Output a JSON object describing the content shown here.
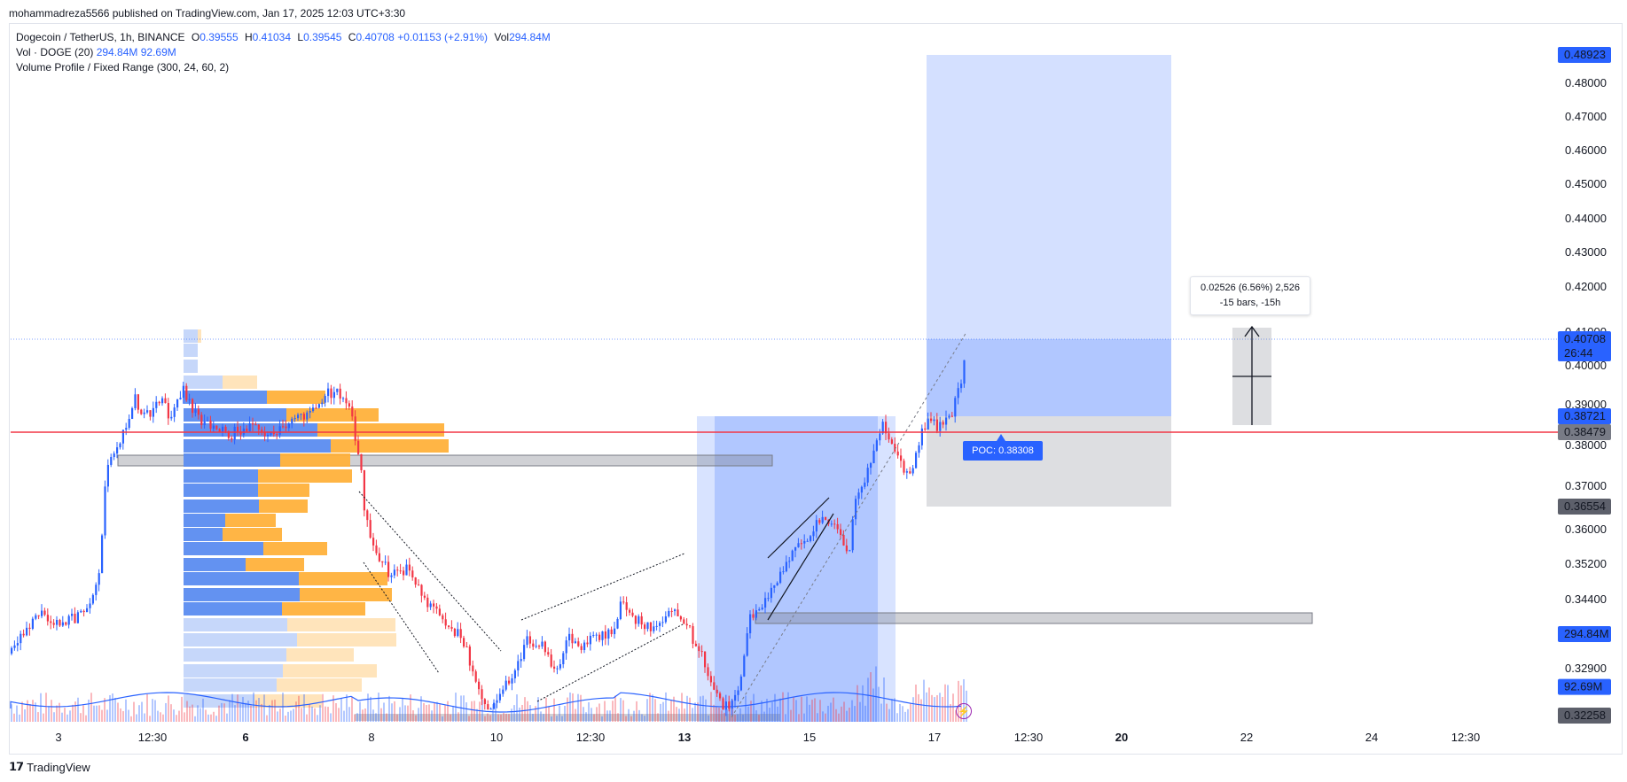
{
  "header": {
    "publisher": "mohammadreza5566 published on TradingView.com, Jan 17, 2025 12:03 UTC+3:30"
  },
  "legend": {
    "symbol": "Dogecoin / TetherUS, 1h, BINANCE",
    "o_label": "O",
    "o_value": "0.39555",
    "h_label": "H",
    "h_value": "0.41034",
    "l_label": "L",
    "l_value": "0.39545",
    "c_label": "C",
    "c_value": "0.40708",
    "change": "+0.01153 (+2.91%)",
    "vol_label": "Vol",
    "vol_value": "294.84M",
    "vol_indicator": "Vol · DOGE (20)",
    "vol_ind_value1": "294.84M",
    "vol_ind_value2": "92.69M",
    "volume_profile": "Volume Profile / Fixed Range (300, 24, 60, 2)"
  },
  "measure": {
    "line1": "0.02526 (6.56%) 2,526",
    "line2": "-15 bars, -15h"
  },
  "poc": {
    "label": "POC: 0.38308"
  },
  "footer": {
    "brand": "TradingView"
  },
  "colors": {
    "up": "#2962ff",
    "down": "#f23645",
    "profile_up": "#5b8cf0",
    "profile_down": "#ffb13b",
    "accent": "#2962ff",
    "red_line": "#f23645"
  },
  "chart_data": {
    "type": "candlestick",
    "symbol": "DOGE/USDT",
    "interval": "1h",
    "price_axis": {
      "ticks": [
        0.48,
        0.47,
        0.46,
        0.45,
        0.44,
        0.43,
        0.42,
        0.41,
        0.4,
        0.39,
        0.38,
        0.37,
        0.36,
        0.352,
        0.344,
        0.329
      ],
      "tick_labels": [
        "0.48000",
        "0.47000",
        "0.46000",
        "0.45000",
        "0.44000",
        "0.43000",
        "0.42000",
        "0.41000",
        "0.40000",
        "0.39000",
        "0.38000",
        "0.37000",
        "0.36000",
        "0.35200",
        "0.34400",
        "0.32900"
      ],
      "badges": [
        {
          "label": "0.48923",
          "color": "#2962ff",
          "price": 0.48923
        },
        {
          "label": "0.40708",
          "sub": "26:44",
          "color": "#2962ff",
          "price": 0.40708
        },
        {
          "label": "0.38721",
          "color": "#2962ff",
          "price": 0.38721
        },
        {
          "label": "0.38479",
          "color": "#787b86",
          "price": 0.38479
        },
        {
          "label": "0.36554",
          "color": "#5d606b",
          "price": 0.36554
        },
        {
          "label": "294.84M",
          "color": "#2962ff",
          "price": 0.3365
        },
        {
          "label": "92.69M",
          "color": "#2962ff",
          "price": 0.3265
        },
        {
          "label": "0.32258",
          "color": "#5d606b",
          "price": 0.32258
        }
      ]
    },
    "time_axis": {
      "labels": [
        "3",
        "12:30",
        "6",
        "8",
        "10",
        "12:30",
        "13",
        "15",
        "17",
        "12:30",
        "20",
        "22",
        "24",
        "12:30"
      ],
      "bold": [
        false,
        false,
        true,
        false,
        false,
        false,
        true,
        false,
        false,
        false,
        true,
        false,
        false,
        false
      ]
    },
    "last_price": 0.40708,
    "horizontal_line": 0.38479,
    "poc_price": 0.38308,
    "long_position": {
      "entry": 0.38721,
      "target": 0.48923,
      "stop": 0.36554
    },
    "measure": {
      "from": 0.38479,
      "to": 0.41005,
      "change": "0.02526 (6.56%) 2,526",
      "bars": "-15 bars, -15h"
    },
    "volume_ma": "Vol · DOGE (20)"
  }
}
